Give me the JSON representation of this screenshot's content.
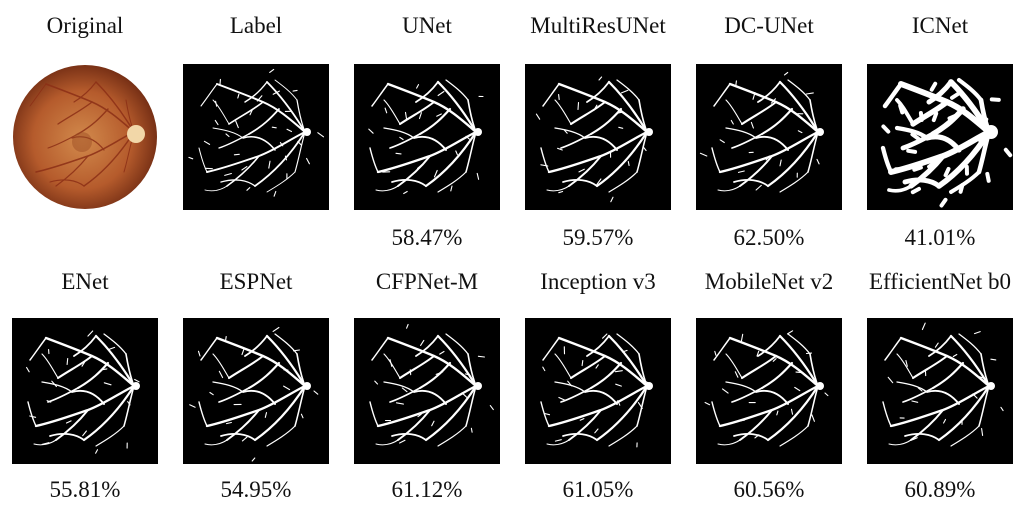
{
  "figure": {
    "panels": [
      {
        "title": "Original",
        "score": "",
        "kind": "original"
      },
      {
        "title": "Label",
        "score": "",
        "kind": "label"
      },
      {
        "title": "UNet",
        "score": "58.47%",
        "kind": "seg"
      },
      {
        "title": "MultiResUNet",
        "score": "59.57%",
        "kind": "seg"
      },
      {
        "title": "DC-UNet",
        "score": "62.50%",
        "kind": "seg"
      },
      {
        "title": "ICNet",
        "score": "41.01%",
        "kind": "thick"
      },
      {
        "title": "ENet",
        "score": "55.81%",
        "kind": "seg"
      },
      {
        "title": "ESPNet",
        "score": "54.95%",
        "kind": "seg"
      },
      {
        "title": "CFPNet-M",
        "score": "61.12%",
        "kind": "seg"
      },
      {
        "title": "Inception v3",
        "score": "61.05%",
        "kind": "seg"
      },
      {
        "title": "MobileNet v2",
        "score": "60.56%",
        "kind": "seg"
      },
      {
        "title": "EfficientNet b0",
        "score": "60.89%",
        "kind": "seg"
      }
    ],
    "colors": {
      "background": "#ffffff",
      "mask_background": "#000000",
      "vessel": "#ffffff",
      "fundus_outer": "#6f2a12",
      "fundus_mid": "#b55b2c",
      "fundus_center": "#d28a4c",
      "optic_disc": "#f2d7a8"
    }
  }
}
